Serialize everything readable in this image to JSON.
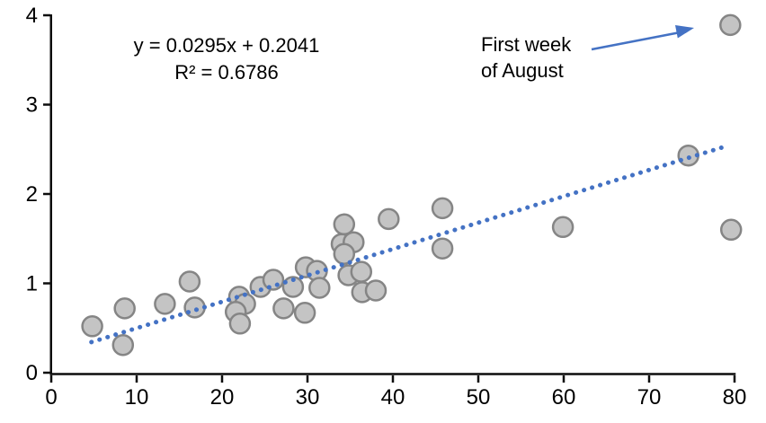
{
  "chart_data": {
    "type": "scatter",
    "title": "",
    "xlabel": "",
    "ylabel": "",
    "grid": false,
    "legend": false,
    "x_axis": {
      "min": 0,
      "max": 80,
      "ticks": [
        0,
        10,
        20,
        30,
        40,
        50,
        60,
        70,
        80
      ]
    },
    "y_axis": {
      "min": 0,
      "max": 4,
      "ticks": [
        0,
        1,
        2,
        3,
        4
      ]
    },
    "points": [
      [
        4.8,
        0.52
      ],
      [
        8.6,
        0.72
      ],
      [
        8.4,
        0.31
      ],
      [
        13.3,
        0.77
      ],
      [
        16.2,
        1.02
      ],
      [
        16.8,
        0.73
      ],
      [
        22.0,
        0.85
      ],
      [
        22.7,
        0.77
      ],
      [
        21.6,
        0.68
      ],
      [
        22.1,
        0.55
      ],
      [
        24.5,
        0.96
      ],
      [
        26.0,
        1.04
      ],
      [
        28.3,
        0.96
      ],
      [
        27.2,
        0.72
      ],
      [
        29.7,
        0.67
      ],
      [
        29.8,
        1.18
      ],
      [
        31.1,
        1.14
      ],
      [
        31.4,
        0.95
      ],
      [
        34.3,
        1.66
      ],
      [
        34.0,
        1.44
      ],
      [
        35.4,
        1.46
      ],
      [
        34.3,
        1.33
      ],
      [
        34.8,
        1.09
      ],
      [
        36.3,
        1.13
      ],
      [
        36.4,
        0.9
      ],
      [
        38.0,
        0.92
      ],
      [
        39.5,
        1.72
      ],
      [
        45.8,
        1.84
      ],
      [
        45.8,
        1.39
      ],
      [
        59.9,
        1.63
      ],
      [
        74.6,
        2.43
      ],
      [
        79.5,
        3.89
      ],
      [
        79.6,
        1.6
      ]
    ],
    "trendline": {
      "slope": 0.0295,
      "intercept": 0.2041,
      "x_start": 4.7,
      "x_end": 78.6,
      "style": "dotted"
    },
    "equation": {
      "line1": "y = 0.0295x + 0.2041",
      "line2": "R² = 0.6786"
    },
    "annotation": {
      "line1": "First week",
      "line2": "of August",
      "target_x": 79.5,
      "target_y": 3.89
    },
    "colors": {
      "point_fill": "#c4c4c4",
      "point_border": "#858585",
      "trend_blue": "#4472c4",
      "axis_black": "#0d0d0d"
    }
  }
}
